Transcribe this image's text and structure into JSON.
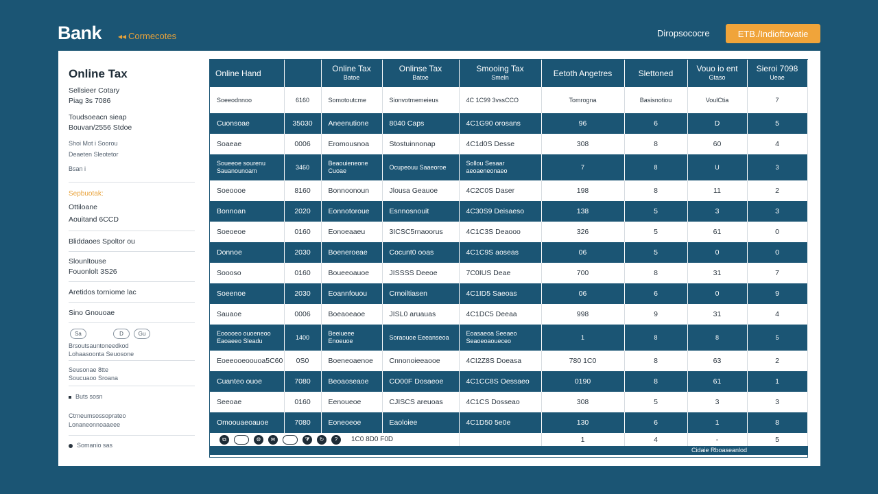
{
  "header": {
    "brand": "Bank",
    "brand_sub": "Cormecotes",
    "link": "Diropsococre",
    "cta": "ETB./Indioftovatie"
  },
  "sidebar": {
    "title": "Online Tax",
    "lines": [
      "Sellsieer Cotary",
      "Piag 3s 7086",
      "Toudsoeacn sieap",
      "Bouvan/2556 Stdoe",
      "Shoi Mot i Soorou",
      "Deaeten Sleotetor",
      "Bsan i",
      "Sepbuotak:",
      "Ottiloane",
      "Aouitand 6CCD",
      "Bliddaoes Spoltor ou",
      "Slounltouse",
      "Fouonlolt 3S26",
      "Aretidos torniome lac",
      "Sino Gnouoae",
      "Brsoutsauntoneedkod",
      "Lohaasoonta Seuosone",
      "Seusonae 8tte",
      "Soucuaoo Sroana",
      "Buts sosn",
      "Ctrneumsossoprateo",
      "Lonaneonnoaaeee",
      "Somanio sas"
    ],
    "pills": [
      "Sa",
      "D",
      "Gu"
    ]
  },
  "table": {
    "headers": [
      {
        "title": "Online Hand",
        "sub": ""
      },
      {
        "title": "",
        "sub": ""
      },
      {
        "title": "Online Tax",
        "sub": "Batoe"
      },
      {
        "title": "Onlinse Tax",
        "sub": "Batoe"
      },
      {
        "title": "Smooing Tax",
        "sub": "Smeln"
      },
      {
        "title": "Eetoth Angetres",
        "sub": ""
      },
      {
        "title": "Slettoned",
        "sub": ""
      },
      {
        "title": "Vouo io ent",
        "sub": "Gtaso"
      },
      {
        "title": "Sieroi 7098",
        "sub": "Ueae"
      }
    ],
    "rows": [
      {
        "style": "light",
        "cells": [
          "Soeeodnnoo",
          "6160",
          "Somotoutcme",
          "Sionvotmemeieus",
          "4C 1C99  3vssCCO",
          "Tomrogna",
          "Basisnotiou",
          "VoulCtia",
          "7"
        ],
        "tall": true
      },
      {
        "style": "dark",
        "cells": [
          "Cuonsoae",
          "35030",
          "Aneenutione",
          "8040  Caps",
          "4C1G90   orosans",
          "96",
          "6",
          "D",
          "5"
        ]
      },
      {
        "style": "light",
        "cells": [
          "Soaeae",
          "0006",
          "Eromousnoa",
          "Stostuinnonap",
          "4C1d0S   Desse",
          "308",
          "8",
          "60",
          "4"
        ]
      },
      {
        "style": "dark",
        "cells": [
          "Soueeoe sourenu Sauanounoam",
          "3460",
          "Beaouieneone Cuoae",
          "Ocupeouu Saaeoroe",
          "Sollou Sesaar aeoaeneonaeo",
          "7",
          "8",
          "U",
          "3"
        ],
        "tall": true
      },
      {
        "style": "light",
        "cells": [
          "Soeoooe",
          "8160",
          "Bonnoonoun",
          "Jlousa  Geauoe",
          "4C2C0S   Daser",
          "198",
          "8",
          "11",
          "2"
        ]
      },
      {
        "style": "dark",
        "cells": [
          "Bonnoan",
          "2020",
          "Eonnotoroue",
          "Esnnosnouit",
          "4C30S9  Deisaeso",
          "138",
          "5",
          "3",
          "3"
        ]
      },
      {
        "style": "light",
        "cells": [
          "Soeoeoe",
          "0160",
          "Eonoeaaeu",
          "3ICSC5rnaoorus",
          "4C1C3S   Deaooo",
          "326",
          "5",
          "61",
          "0"
        ]
      },
      {
        "style": "dark",
        "cells": [
          "Donnoe",
          "2030",
          "Boeneroeae",
          "Cocunt0 ooas",
          "4C1C9S  aoseas",
          "06",
          "5",
          "0",
          "0"
        ]
      },
      {
        "style": "light",
        "cells": [
          "Soooso",
          "0160",
          "Boueeoauoe",
          "JISSSS  Deeoe",
          "7C0IUS   Deae",
          "700",
          "8",
          "31",
          "7"
        ]
      },
      {
        "style": "dark",
        "cells": [
          "Soeenoe",
          "2030",
          "Eoannfouou",
          "Crnoiltiasen",
          "4C1ID5 Saeoas",
          "06",
          "6",
          "0",
          "9"
        ]
      },
      {
        "style": "light",
        "cells": [
          "Sauaoe",
          "0006",
          "Boeaoeaoe",
          "JISL0 aruauas",
          "4C1DC5  Deeaa",
          "998",
          "9",
          "31",
          "4"
        ]
      },
      {
        "style": "dark",
        "cells": [
          "Eooooeo ouoeneoo Eaoaeeo Sleadu",
          "1400",
          "Beeiueee Enoeuoe",
          "Soraouoe Eeeanseoa",
          "Eoasaeoa Seeaeo Seaoeoaoueceo",
          "1",
          "8",
          "8",
          "5"
        ],
        "tall": true
      },
      {
        "style": "light",
        "cells": [
          "Eoeeooeoouoa5C60",
          "0S0",
          "Boeneoaenoe",
          "Cnnonoieeaooe",
          "4CI2Z8S  Doeasa",
          "780 1C0",
          "8",
          "63",
          "2"
        ]
      },
      {
        "style": "dark",
        "cells": [
          "Cuanteo ouoe",
          "7080",
          "Beoaoseaoe",
          "CO00F Dosaeoe",
          "4C1CC8S  Oessaeo",
          "0190",
          "8",
          "61",
          "1"
        ]
      },
      {
        "style": "light",
        "cells": [
          "Seeoae",
          "0160",
          "Eenoueoe",
          "CJISCS areuoas",
          "4C1CS Dosseao",
          "308",
          "5",
          "3",
          "3"
        ]
      },
      {
        "style": "dark",
        "cells": [
          "Omoouaeoauoe",
          "7080",
          "Eoneoeoe",
          "Eaoloiee",
          "4C1D50 5e0e",
          "130",
          "6",
          "1",
          "8"
        ]
      }
    ],
    "toolbar_tail": [
      "",
      "",
      "",
      "",
      "1",
      "4",
      "-",
      "5"
    ],
    "toolbar_text": "1C0  8D0  F0D",
    "footer": "Cidaie Rboaseanlod"
  }
}
